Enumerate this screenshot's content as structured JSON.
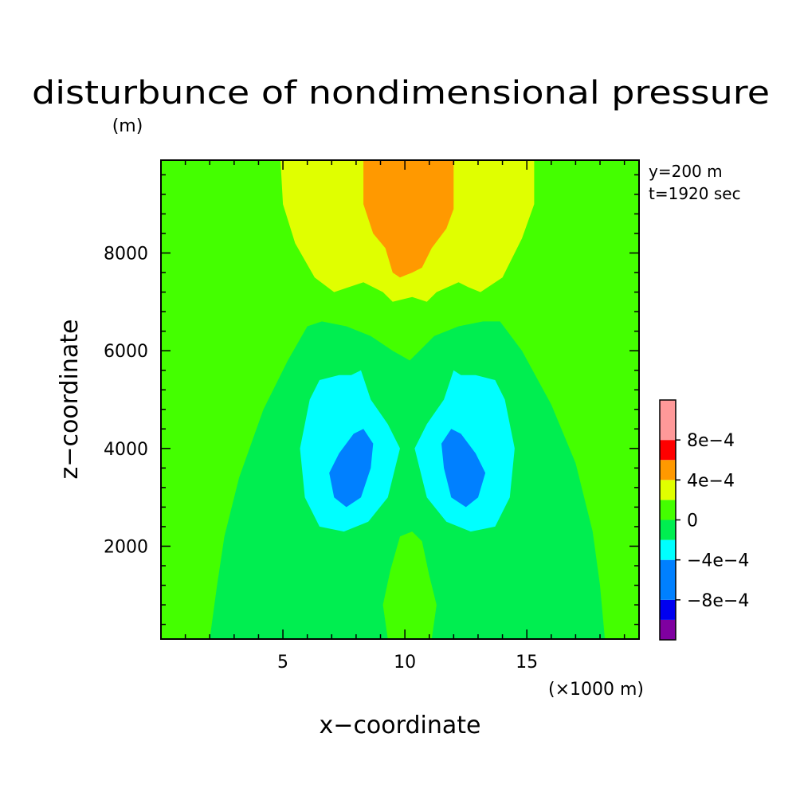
{
  "chart_data": {
    "type": "heatmap",
    "title": "disturbunce of nondimensional pressure",
    "xlabel": "x−coordinate",
    "ylabel": "z−coordinate",
    "xunit": "(×1000 m)",
    "yunit": "(m)",
    "annotations": [
      "y=200 m",
      "t=1920 sec"
    ],
    "xlim": [
      0,
      19.6
    ],
    "ylim": [
      100,
      9900
    ],
    "xticks": [
      5,
      10,
      15
    ],
    "xtick_labels": [
      "5",
      "10",
      "15"
    ],
    "yticks": [
      2000,
      4000,
      6000,
      8000
    ],
    "ytick_labels": [
      "2000",
      "4000",
      "6000",
      "8000"
    ],
    "colorbar": {
      "levels": [
        -0.0012,
        -0.0008,
        -0.0004,
        0,
        0.0004,
        0.0008,
        0.0012
      ],
      "tick_labels": [
        "−8e−4",
        "−4e−4",
        "0",
        "4e−4",
        "8e−4"
      ],
      "tick_values": [
        -0.0008,
        -0.0004,
        0,
        0.0004,
        0.0008
      ],
      "colors": [
        "#7f00a0",
        "#0000f0",
        "#0080ff",
        "#00ffff",
        "#00ee50",
        "#44ff00",
        "#e0ff00",
        "#ff9900",
        "#ff0000",
        "#ff9999"
      ],
      "bins": [
        [
          -0.0012,
          -0.001
        ],
        [
          -0.001,
          -0.0008
        ],
        [
          -0.0008,
          -0.0004
        ],
        [
          -0.0004,
          -0.0002
        ],
        [
          -0.0002,
          0
        ],
        [
          0,
          0.0002
        ],
        [
          0.0002,
          0.0004
        ],
        [
          0.0004,
          0.0006
        ],
        [
          0.0006,
          0.0008
        ],
        [
          0.0008,
          0.0012
        ]
      ]
    },
    "regions": [
      {
        "level": "0..2e-4",
        "color": "#44ff00",
        "desc": "background"
      },
      {
        "level": "-2e-4..0",
        "color": "#00ee50",
        "polygon": [
          [
            2.0,
            100
          ],
          [
            2.3,
            1200
          ],
          [
            2.6,
            2200
          ],
          [
            3.2,
            3400
          ],
          [
            4.2,
            4800
          ],
          [
            5.2,
            5800
          ],
          [
            6.0,
            6500
          ],
          [
            6.6,
            6600
          ],
          [
            7.6,
            6500
          ],
          [
            8.6,
            6300
          ],
          [
            9.2,
            6100
          ],
          [
            9.5,
            6000
          ],
          [
            10.2,
            5800
          ],
          [
            10.6,
            6000
          ],
          [
            11.2,
            6300
          ],
          [
            12.2,
            6500
          ],
          [
            13.2,
            6600
          ],
          [
            13.9,
            6600
          ],
          [
            14.8,
            6000
          ],
          [
            16.0,
            4900
          ],
          [
            17.0,
            3700
          ],
          [
            17.7,
            2300
          ],
          [
            18.0,
            1200
          ],
          [
            18.2,
            100
          ]
        ]
      },
      {
        "level": "0..2e-4",
        "color": "#44ff00",
        "polygon": [
          [
            9.3,
            100
          ],
          [
            9.1,
            800
          ],
          [
            9.4,
            1500
          ],
          [
            9.8,
            2200
          ],
          [
            10.3,
            2300
          ],
          [
            10.7,
            2100
          ],
          [
            11.0,
            1400
          ],
          [
            11.3,
            800
          ],
          [
            11.1,
            100
          ]
        ]
      },
      {
        "level": "-4e-4..-2e-4",
        "color": "#00ffff",
        "polygon": [
          [
            5.7,
            4000
          ],
          [
            5.9,
            3000
          ],
          [
            6.5,
            2400
          ],
          [
            7.5,
            2300
          ],
          [
            8.5,
            2500
          ],
          [
            9.3,
            3000
          ],
          [
            9.8,
            4000
          ],
          [
            9.3,
            4500
          ],
          [
            8.6,
            5000
          ],
          [
            8.2,
            5600
          ],
          [
            7.8,
            5500
          ],
          [
            7.3,
            5500
          ],
          [
            6.5,
            5400
          ],
          [
            6.1,
            5000
          ]
        ]
      },
      {
        "level": "-4e-4..-2e-4",
        "color": "#00ffff",
        "polygon": [
          [
            10.4,
            4000
          ],
          [
            10.9,
            3000
          ],
          [
            11.7,
            2500
          ],
          [
            12.7,
            2300
          ],
          [
            13.7,
            2400
          ],
          [
            14.3,
            3000
          ],
          [
            14.5,
            4000
          ],
          [
            14.1,
            5000
          ],
          [
            13.7,
            5400
          ],
          [
            12.9,
            5500
          ],
          [
            12.3,
            5500
          ],
          [
            12.0,
            5600
          ],
          [
            11.6,
            5000
          ],
          [
            10.9,
            4500
          ]
        ]
      },
      {
        "level": "-8e-4..-4e-4",
        "color": "#0080ff",
        "polygon": [
          [
            6.9,
            3500
          ],
          [
            7.1,
            3000
          ],
          [
            7.6,
            2800
          ],
          [
            8.2,
            3000
          ],
          [
            8.6,
            3600
          ],
          [
            8.7,
            4100
          ],
          [
            8.3,
            4400
          ],
          [
            7.9,
            4300
          ],
          [
            7.3,
            3900
          ]
        ]
      },
      {
        "level": "-8e-4..-4e-4",
        "color": "#0080ff",
        "polygon": [
          [
            11.6,
            3600
          ],
          [
            11.9,
            3000
          ],
          [
            12.5,
            2800
          ],
          [
            13.0,
            3000
          ],
          [
            13.3,
            3500
          ],
          [
            12.9,
            3900
          ],
          [
            12.3,
            4300
          ],
          [
            11.9,
            4400
          ],
          [
            11.5,
            4100
          ]
        ]
      },
      {
        "level": "2e-4..4e-4",
        "color": "#e0ff00",
        "polygon": [
          [
            4.9,
            9900
          ],
          [
            5.0,
            9000
          ],
          [
            5.5,
            8200
          ],
          [
            6.3,
            7500
          ],
          [
            7.1,
            7200
          ],
          [
            7.7,
            7300
          ],
          [
            8.3,
            7400
          ],
          [
            9.1,
            7200
          ],
          [
            9.5,
            7000
          ],
          [
            10.3,
            7100
          ],
          [
            10.9,
            7000
          ],
          [
            11.3,
            7200
          ],
          [
            12.2,
            7400
          ],
          [
            12.6,
            7300
          ],
          [
            13.1,
            7200
          ],
          [
            14.0,
            7500
          ],
          [
            14.8,
            8300
          ],
          [
            15.3,
            9000
          ],
          [
            15.3,
            9900
          ]
        ]
      },
      {
        "level": "4e-4..6e-4",
        "color": "#ff9900",
        "polygon": [
          [
            8.3,
            9900
          ],
          [
            8.3,
            9000
          ],
          [
            8.7,
            8400
          ],
          [
            9.2,
            8100
          ],
          [
            9.5,
            7600
          ],
          [
            9.8,
            7500
          ],
          [
            10.3,
            7600
          ],
          [
            10.7,
            7700
          ],
          [
            11.1,
            8100
          ],
          [
            11.7,
            8500
          ],
          [
            12.0,
            8900
          ],
          [
            12.0,
            9900
          ]
        ]
      }
    ]
  }
}
